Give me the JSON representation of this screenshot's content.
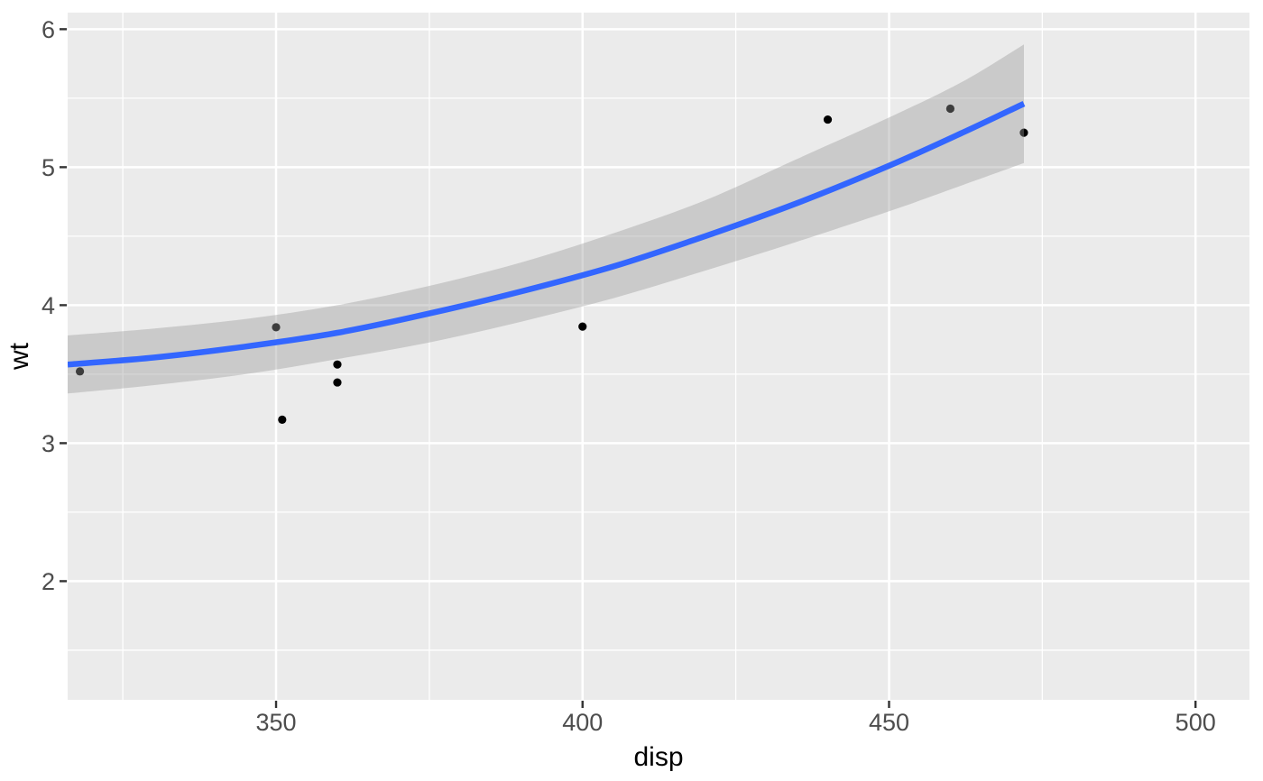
{
  "figure": {
    "background": "#FFFFFF",
    "panel_background": "#EBEBEB",
    "grid_color": "#FFFFFF",
    "tick_mark_color": "#333333",
    "tick_label_color": "#4D4D4D",
    "axis_title_color": "#000000",
    "point_color": "#000000",
    "smooth_line_color": "#3366FF",
    "ribbon_color": "#999999",
    "ribbon_opacity": 0.4
  },
  "chart_data": {
    "type": "scatter",
    "subtype": "scatter-with-loess-smooth-and-confidence-ribbon",
    "title": "",
    "xlabel": "disp",
    "ylabel": "wt",
    "grid": true,
    "legend_position": "none",
    "x_domain": [
      316.0,
      508.8
    ],
    "y_domain": [
      1.14,
      6.12
    ],
    "x_ticks_major": [
      350,
      400,
      450,
      500
    ],
    "x_ticks_minor": [
      325,
      375,
      425,
      475
    ],
    "y_ticks_major": [
      2,
      3,
      4,
      5,
      6
    ],
    "y_ticks_minor": [
      1.5,
      2.5,
      3.5,
      4.5,
      5.5
    ],
    "points": [
      {
        "disp": 318,
        "wt": 3.52
      },
      {
        "disp": 350,
        "wt": 3.84
      },
      {
        "disp": 351,
        "wt": 3.17
      },
      {
        "disp": 360,
        "wt": 3.57
      },
      {
        "disp": 360,
        "wt": 3.44
      },
      {
        "disp": 400,
        "wt": 3.845
      },
      {
        "disp": 440,
        "wt": 5.345
      },
      {
        "disp": 460,
        "wt": 5.424
      },
      {
        "disp": 472,
        "wt": 5.25
      }
    ],
    "smooth": {
      "x": [
        316,
        330,
        345,
        360,
        375,
        390,
        405,
        420,
        435,
        450,
        462,
        472
      ],
      "y": [
        3.57,
        3.62,
        3.7,
        3.8,
        3.94,
        4.1,
        4.28,
        4.5,
        4.74,
        5.01,
        5.25,
        5.46
      ],
      "upper": [
        3.78,
        3.83,
        3.9,
        4.0,
        4.14,
        4.31,
        4.52,
        4.76,
        5.06,
        5.36,
        5.62,
        5.89
      ],
      "lower": [
        3.36,
        3.42,
        3.5,
        3.61,
        3.73,
        3.88,
        4.05,
        4.25,
        4.46,
        4.68,
        4.87,
        5.03
      ]
    }
  }
}
